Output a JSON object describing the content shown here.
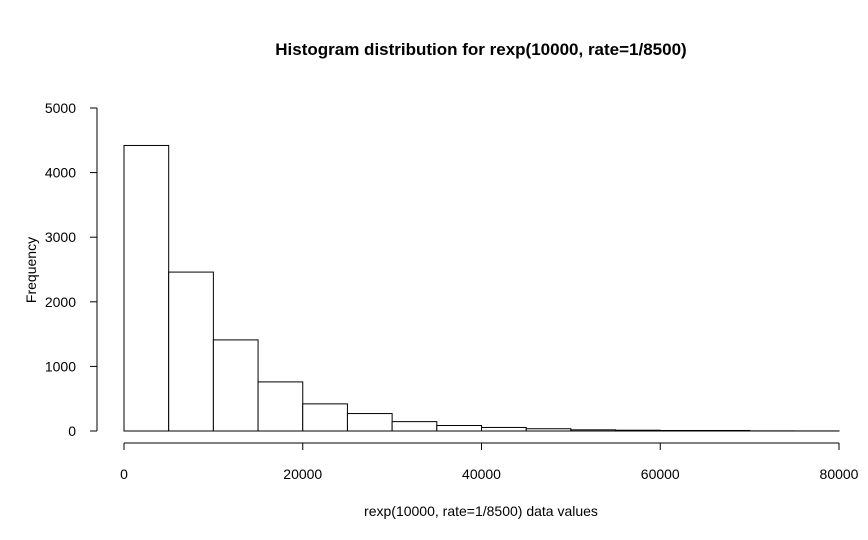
{
  "chart_data": {
    "type": "bar",
    "title": "Histogram distribution for rexp(10000, rate=1/8500)",
    "xlabel": "rexp(10000, rate=1/8500) data values",
    "ylabel": "Frequency",
    "xlim": [
      0,
      80000
    ],
    "ylim": [
      0,
      5000
    ],
    "x_ticks": [
      0,
      20000,
      40000,
      60000,
      80000
    ],
    "y_ticks": [
      0,
      1000,
      2000,
      3000,
      4000,
      5000
    ],
    "grid": false,
    "bin_width": 5000,
    "bins": [
      {
        "from": 0,
        "to": 5000,
        "count": 4420
      },
      {
        "from": 5000,
        "to": 10000,
        "count": 2460
      },
      {
        "from": 10000,
        "to": 15000,
        "count": 1410
      },
      {
        "from": 15000,
        "to": 20000,
        "count": 760
      },
      {
        "from": 20000,
        "to": 25000,
        "count": 420
      },
      {
        "from": 25000,
        "to": 30000,
        "count": 270
      },
      {
        "from": 30000,
        "to": 35000,
        "count": 145
      },
      {
        "from": 35000,
        "to": 40000,
        "count": 85
      },
      {
        "from": 40000,
        "to": 45000,
        "count": 55
      },
      {
        "from": 45000,
        "to": 50000,
        "count": 35
      },
      {
        "from": 50000,
        "to": 55000,
        "count": 18
      },
      {
        "from": 55000,
        "to": 60000,
        "count": 12
      },
      {
        "from": 60000,
        "to": 65000,
        "count": 8
      },
      {
        "from": 65000,
        "to": 70000,
        "count": 8
      },
      {
        "from": 70000,
        "to": 75000,
        "count": 2
      },
      {
        "from": 75000,
        "to": 80000,
        "count": 1
      }
    ]
  }
}
